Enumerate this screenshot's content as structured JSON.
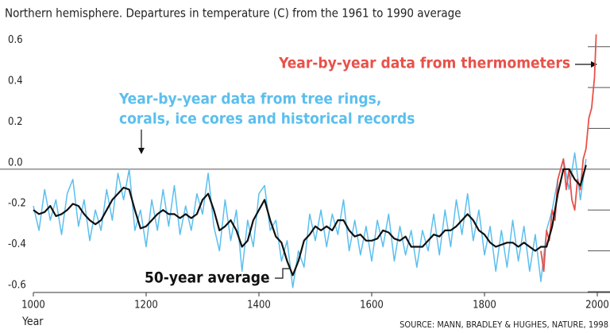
{
  "chart_data": {
    "type": "line",
    "title": "Northern hemisphere. Departures in temperature (C) from the 1961 to 1990 average",
    "x_label": "Year",
    "source": "SOURCE: MANN, BRADLEY & HUGHES, NATURE, 1998",
    "xlim": [
      1000,
      2000
    ],
    "xticks": [
      1000,
      1200,
      1400,
      1600,
      1800,
      2000
    ],
    "ylim": [
      -0.6,
      0.7
    ],
    "yticks": [
      {
        "value": -0.6,
        "label": "-0.6"
      },
      {
        "value": -0.4,
        "label": "-0.4"
      },
      {
        "value": -0.2,
        "label": "-0.2"
      },
      {
        "value": 0,
        "label": "0.0"
      },
      {
        "value": 0.2,
        "label": "0.2"
      },
      {
        "value": 0.4,
        "label": "0.4"
      },
      {
        "value": 0.6,
        "label": "0.6"
      }
    ],
    "x": [
      1000,
      1010,
      1020,
      1030,
      1040,
      1050,
      1060,
      1070,
      1080,
      1090,
      1100,
      1110,
      1120,
      1130,
      1140,
      1150,
      1160,
      1170,
      1180,
      1190,
      1200,
      1210,
      1220,
      1230,
      1240,
      1250,
      1260,
      1270,
      1280,
      1290,
      1300,
      1310,
      1320,
      1330,
      1340,
      1350,
      1360,
      1370,
      1380,
      1390,
      1400,
      1410,
      1420,
      1430,
      1440,
      1450,
      1460,
      1470,
      1480,
      1490,
      1500,
      1510,
      1520,
      1530,
      1540,
      1550,
      1560,
      1570,
      1580,
      1590,
      1600,
      1610,
      1620,
      1630,
      1640,
      1650,
      1660,
      1670,
      1680,
      1690,
      1700,
      1710,
      1720,
      1730,
      1740,
      1750,
      1760,
      1770,
      1780,
      1790,
      1800,
      1810,
      1820,
      1830,
      1840,
      1850,
      1860,
      1870,
      1880,
      1890,
      1900,
      1910,
      1920,
      1930,
      1940,
      1950,
      1960,
      1970,
      1980
    ],
    "series": [
      {
        "name": [
          "Year-by-year data from tree rings,",
          "corals, ice cores and historical records"
        ],
        "color": "#5bbfee",
        "width": 1.5,
        "values": [
          -0.18,
          -0.3,
          -0.1,
          -0.25,
          -0.15,
          -0.32,
          -0.12,
          -0.05,
          -0.28,
          -0.15,
          -0.35,
          -0.2,
          -0.3,
          -0.1,
          -0.25,
          -0.02,
          -0.15,
          0.0,
          -0.3,
          -0.2,
          -0.38,
          -0.15,
          -0.3,
          -0.1,
          -0.28,
          -0.08,
          -0.32,
          -0.18,
          -0.3,
          -0.12,
          -0.22,
          -0.02,
          -0.28,
          -0.4,
          -0.15,
          -0.35,
          -0.2,
          -0.5,
          -0.25,
          -0.38,
          -0.12,
          -0.08,
          -0.3,
          -0.25,
          -0.45,
          -0.35,
          -0.58,
          -0.4,
          -0.48,
          -0.22,
          -0.35,
          -0.2,
          -0.38,
          -0.22,
          -0.32,
          -0.15,
          -0.4,
          -0.25,
          -0.42,
          -0.28,
          -0.45,
          -0.25,
          -0.38,
          -0.22,
          -0.45,
          -0.28,
          -0.42,
          -0.3,
          -0.48,
          -0.3,
          -0.4,
          -0.22,
          -0.42,
          -0.2,
          -0.38,
          -0.15,
          -0.32,
          -0.12,
          -0.35,
          -0.2,
          -0.42,
          -0.28,
          -0.5,
          -0.3,
          -0.48,
          -0.25,
          -0.45,
          -0.28,
          -0.5,
          -0.32,
          -0.55,
          -0.3,
          -0.2,
          -0.05,
          0.05,
          -0.1,
          0.08,
          -0.15,
          0.05
        ]
      },
      {
        "name": "Year-by-year data from thermometers",
        "color": "#e8524a",
        "width": 1.8,
        "x": [
          1900,
          1905,
          1910,
          1915,
          1920,
          1925,
          1930,
          1935,
          1940,
          1945,
          1950,
          1955,
          1960,
          1965,
          1970,
          1975,
          1980,
          1985,
          1990,
          1995,
          1998
        ],
        "values": [
          -0.4,
          -0.5,
          -0.3,
          -0.35,
          -0.2,
          -0.25,
          -0.05,
          0.0,
          0.05,
          -0.1,
          0.0,
          -0.15,
          -0.2,
          -0.05,
          -0.1,
          0.05,
          0.1,
          0.25,
          0.3,
          0.45,
          0.66
        ]
      },
      {
        "name": "50-year average",
        "color": "#111111",
        "width": 2.2,
        "values": [
          -0.2,
          -0.22,
          -0.21,
          -0.18,
          -0.23,
          -0.22,
          -0.2,
          -0.17,
          -0.18,
          -0.22,
          -0.25,
          -0.27,
          -0.25,
          -0.2,
          -0.15,
          -0.12,
          -0.09,
          -0.1,
          -0.2,
          -0.29,
          -0.28,
          -0.25,
          -0.22,
          -0.2,
          -0.22,
          -0.22,
          -0.24,
          -0.22,
          -0.24,
          -0.22,
          -0.15,
          -0.12,
          -0.2,
          -0.3,
          -0.28,
          -0.25,
          -0.3,
          -0.38,
          -0.35,
          -0.25,
          -0.2,
          -0.15,
          -0.25,
          -0.33,
          -0.36,
          -0.45,
          -0.52,
          -0.45,
          -0.35,
          -0.32,
          -0.28,
          -0.3,
          -0.28,
          -0.3,
          -0.25,
          -0.25,
          -0.3,
          -0.33,
          -0.32,
          -0.35,
          -0.35,
          -0.34,
          -0.3,
          -0.31,
          -0.34,
          -0.35,
          -0.33,
          -0.38,
          -0.38,
          -0.38,
          -0.35,
          -0.32,
          -0.33,
          -0.3,
          -0.3,
          -0.28,
          -0.25,
          -0.22,
          -0.25,
          -0.3,
          -0.32,
          -0.36,
          -0.38,
          -0.37,
          -0.36,
          -0.36,
          -0.38,
          -0.36,
          -0.38,
          -0.4,
          -0.38,
          -0.38,
          -0.28,
          -0.12,
          0.0,
          0.0,
          -0.05,
          -0.08,
          0.02
        ]
      }
    ]
  }
}
